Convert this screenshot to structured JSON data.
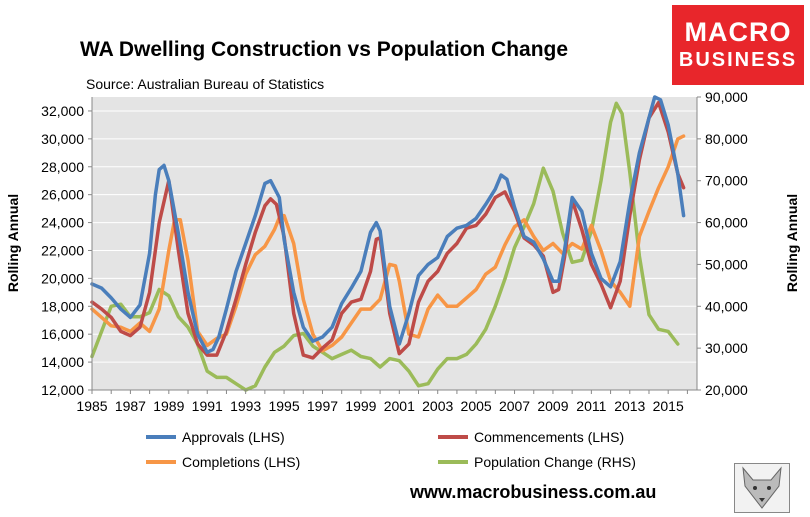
{
  "header": {
    "title": "WA Dwelling Construction vs Population Change",
    "source": "Source: Australian Bureau of Statistics"
  },
  "logo": {
    "line1": "MACRO",
    "line2": "BUSINESS",
    "background": "#e8262b"
  },
  "footer": {
    "url": "www.macrobusiness.com.au"
  },
  "colors": {
    "plot_bg": "#e4e4e4",
    "approvals": "#4a7ebb",
    "commencements": "#be4b48",
    "completions": "#f79646",
    "population": "#9bbb59"
  },
  "chart_data": {
    "type": "line",
    "title": "WA Dwelling Construction vs Population Change",
    "ylabel": "Rolling Annual",
    "y2label": "Rolling Annual",
    "xlim": [
      1985,
      2016.5
    ],
    "ylim": [
      12000,
      33000
    ],
    "y2lim": [
      20000,
      90000
    ],
    "xticks": [
      1985,
      1987,
      1989,
      1991,
      1993,
      1995,
      1997,
      1999,
      2001,
      2003,
      2005,
      2007,
      2009,
      2011,
      2013,
      2015
    ],
    "xtick_labels": [
      "1985",
      "1987",
      "1989",
      "1991",
      "1993",
      "1995",
      "1997",
      "1999",
      "2001",
      "2003",
      "2005",
      "2007",
      "2009",
      "2011",
      "2013",
      "2015"
    ],
    "yticks": [
      12000,
      14000,
      16000,
      18000,
      20000,
      22000,
      24000,
      26000,
      28000,
      30000,
      32000
    ],
    "ytick_labels": [
      "12,000",
      "14,000",
      "16,000",
      "18,000",
      "20,000",
      "22,000",
      "24,000",
      "26,000",
      "28,000",
      "30,000",
      "32,000"
    ],
    "y2ticks": [
      20000,
      30000,
      40000,
      50000,
      60000,
      70000,
      80000,
      90000
    ],
    "y2tick_labels": [
      "20,000",
      "30,000",
      "40,000",
      "50,000",
      "60,000",
      "70,000",
      "80,000",
      "90,000"
    ],
    "legend_position": "bottom",
    "series": [
      {
        "name": "Approvals (LHS)",
        "axis": "left",
        "color": "#4a7ebb",
        "points": [
          [
            1985,
            19600
          ],
          [
            1985.5,
            19300
          ],
          [
            1986,
            18600
          ],
          [
            1986.5,
            17800
          ],
          [
            1987,
            17200
          ],
          [
            1987.5,
            18100
          ],
          [
            1988,
            21800
          ],
          [
            1988.3,
            26000
          ],
          [
            1988.5,
            27800
          ],
          [
            1988.75,
            28100
          ],
          [
            1989,
            27000
          ],
          [
            1989.5,
            23200
          ],
          [
            1990,
            19000
          ],
          [
            1990.5,
            16000
          ],
          [
            1991,
            14700
          ],
          [
            1991.3,
            14900
          ],
          [
            1991.6,
            15800
          ],
          [
            1992,
            17800
          ],
          [
            1992.5,
            20500
          ],
          [
            1993,
            22500
          ],
          [
            1993.5,
            24500
          ],
          [
            1994,
            26800
          ],
          [
            1994.3,
            27000
          ],
          [
            1994.75,
            25800
          ],
          [
            1995,
            22800
          ],
          [
            1995.5,
            19000
          ],
          [
            1996,
            16500
          ],
          [
            1996.5,
            15500
          ],
          [
            1997,
            15800
          ],
          [
            1997.5,
            16500
          ],
          [
            1998,
            18200
          ],
          [
            1998.5,
            19300
          ],
          [
            1999,
            20500
          ],
          [
            1999.5,
            23300
          ],
          [
            1999.8,
            24000
          ],
          [
            2000,
            23400
          ],
          [
            2000.5,
            18000
          ],
          [
            2001,
            15300
          ],
          [
            2001.5,
            17500
          ],
          [
            2002,
            20200
          ],
          [
            2002.5,
            21000
          ],
          [
            2003,
            21500
          ],
          [
            2003.5,
            23000
          ],
          [
            2004,
            23600
          ],
          [
            2004.5,
            23800
          ],
          [
            2005,
            24300
          ],
          [
            2005.5,
            25300
          ],
          [
            2006,
            26400
          ],
          [
            2006.3,
            27400
          ],
          [
            2006.6,
            27100
          ],
          [
            2007,
            25100
          ],
          [
            2007.5,
            23000
          ],
          [
            2008,
            22600
          ],
          [
            2008.5,
            21400
          ],
          [
            2009,
            19800
          ],
          [
            2009.3,
            19800
          ],
          [
            2009.6,
            22000
          ],
          [
            2010,
            25800
          ],
          [
            2010.5,
            24800
          ],
          [
            2011,
            21800
          ],
          [
            2011.5,
            20000
          ],
          [
            2012,
            19400
          ],
          [
            2012.5,
            21200
          ],
          [
            2013,
            25500
          ],
          [
            2013.5,
            29000
          ],
          [
            2014,
            31500
          ],
          [
            2014.3,
            33000
          ],
          [
            2014.6,
            32800
          ],
          [
            2015,
            31000
          ],
          [
            2015.5,
            27500
          ],
          [
            2015.8,
            24500
          ]
        ]
      },
      {
        "name": "Commencements (LHS)",
        "axis": "left",
        "color": "#be4b48",
        "points": [
          [
            1985,
            18300
          ],
          [
            1985.5,
            17800
          ],
          [
            1986,
            17200
          ],
          [
            1986.5,
            16200
          ],
          [
            1987,
            15900
          ],
          [
            1987.5,
            16500
          ],
          [
            1988,
            19000
          ],
          [
            1988.5,
            24000
          ],
          [
            1989,
            27000
          ],
          [
            1989.5,
            22000
          ],
          [
            1990,
            17500
          ],
          [
            1990.5,
            15300
          ],
          [
            1991,
            14500
          ],
          [
            1991.5,
            14500
          ],
          [
            1992,
            16200
          ],
          [
            1992.5,
            18500
          ],
          [
            1993,
            21000
          ],
          [
            1993.5,
            23300
          ],
          [
            1994,
            25200
          ],
          [
            1994.3,
            25700
          ],
          [
            1994.6,
            25300
          ],
          [
            1995,
            23000
          ],
          [
            1995.5,
            17500
          ],
          [
            1996,
            14500
          ],
          [
            1996.5,
            14300
          ],
          [
            1997,
            15000
          ],
          [
            1997.5,
            15600
          ],
          [
            1998,
            17500
          ],
          [
            1998.5,
            18300
          ],
          [
            1999,
            18500
          ],
          [
            1999.5,
            20500
          ],
          [
            1999.8,
            22800
          ],
          [
            2000,
            22900
          ],
          [
            2000.5,
            17500
          ],
          [
            2001,
            14600
          ],
          [
            2001.5,
            15300
          ],
          [
            2002,
            18300
          ],
          [
            2002.5,
            19800
          ],
          [
            2003,
            20500
          ],
          [
            2003.5,
            21800
          ],
          [
            2004,
            22500
          ],
          [
            2004.5,
            23600
          ],
          [
            2005,
            23800
          ],
          [
            2005.5,
            24600
          ],
          [
            2006,
            25800
          ],
          [
            2006.5,
            26200
          ],
          [
            2007,
            24800
          ],
          [
            2007.5,
            22900
          ],
          [
            2008,
            22400
          ],
          [
            2008.5,
            21600
          ],
          [
            2009,
            19000
          ],
          [
            2009.3,
            19200
          ],
          [
            2009.6,
            21500
          ],
          [
            2010,
            25600
          ],
          [
            2010.5,
            23500
          ],
          [
            2011,
            21000
          ],
          [
            2011.5,
            19600
          ],
          [
            2012,
            17900
          ],
          [
            2012.5,
            19800
          ],
          [
            2013,
            24500
          ],
          [
            2013.5,
            28500
          ],
          [
            2014,
            31500
          ],
          [
            2014.5,
            32600
          ],
          [
            2015,
            30500
          ],
          [
            2015.5,
            27500
          ],
          [
            2015.8,
            26500
          ]
        ]
      },
      {
        "name": "Completions (LHS)",
        "axis": "left",
        "color": "#f79646",
        "points": [
          [
            1985,
            17800
          ],
          [
            1985.5,
            17200
          ],
          [
            1986,
            16600
          ],
          [
            1986.5,
            16500
          ],
          [
            1987,
            16200
          ],
          [
            1987.5,
            16800
          ],
          [
            1988,
            16200
          ],
          [
            1988.5,
            17800
          ],
          [
            1989,
            22000
          ],
          [
            1989.3,
            24200
          ],
          [
            1989.6,
            24200
          ],
          [
            1990,
            21300
          ],
          [
            1990.5,
            16200
          ],
          [
            1991,
            15200
          ],
          [
            1991.5,
            15700
          ],
          [
            1992,
            16000
          ],
          [
            1992.5,
            18000
          ],
          [
            1993,
            20300
          ],
          [
            1993.5,
            21700
          ],
          [
            1994,
            22300
          ],
          [
            1994.5,
            23500
          ],
          [
            1994.8,
            24500
          ],
          [
            1995,
            24500
          ],
          [
            1995.5,
            22500
          ],
          [
            1996,
            18500
          ],
          [
            1996.5,
            16000
          ],
          [
            1997,
            14800
          ],
          [
            1997.5,
            15200
          ],
          [
            1998,
            15800
          ],
          [
            1998.5,
            16800
          ],
          [
            1999,
            17800
          ],
          [
            1999.5,
            17800
          ],
          [
            2000,
            18500
          ],
          [
            2000.5,
            21000
          ],
          [
            2000.8,
            20900
          ],
          [
            2001,
            19800
          ],
          [
            2001.5,
            16000
          ],
          [
            2002,
            15800
          ],
          [
            2002.5,
            17800
          ],
          [
            2003,
            18800
          ],
          [
            2003.5,
            18000
          ],
          [
            2004,
            18000
          ],
          [
            2004.5,
            18600
          ],
          [
            2005,
            19200
          ],
          [
            2005.5,
            20300
          ],
          [
            2006,
            20800
          ],
          [
            2006.5,
            22400
          ],
          [
            2007,
            23700
          ],
          [
            2007.5,
            24200
          ],
          [
            2008,
            23000
          ],
          [
            2008.5,
            22000
          ],
          [
            2009,
            22500
          ],
          [
            2009.5,
            21800
          ],
          [
            2010,
            22500
          ],
          [
            2010.5,
            22100
          ],
          [
            2011,
            23800
          ],
          [
            2011.5,
            22000
          ],
          [
            2012,
            19800
          ],
          [
            2012.5,
            19000
          ],
          [
            2013,
            18000
          ],
          [
            2013.5,
            23000
          ],
          [
            2014,
            24800
          ],
          [
            2014.5,
            26500
          ],
          [
            2015,
            28000
          ],
          [
            2015.5,
            30000
          ],
          [
            2015.8,
            30200
          ]
        ]
      },
      {
        "name": "Population Change (RHS)",
        "axis": "right",
        "color": "#9bbb59",
        "points": [
          [
            1985,
            28000
          ],
          [
            1985.5,
            34000
          ],
          [
            1986,
            40000
          ],
          [
            1986.5,
            40500
          ],
          [
            1987,
            37500
          ],
          [
            1987.5,
            37500
          ],
          [
            1988,
            38500
          ],
          [
            1988.5,
            44000
          ],
          [
            1989,
            42500
          ],
          [
            1989.5,
            37500
          ],
          [
            1990,
            35000
          ],
          [
            1990.5,
            31000
          ],
          [
            1991,
            24500
          ],
          [
            1991.5,
            23000
          ],
          [
            1992,
            23000
          ],
          [
            1992.5,
            21500
          ],
          [
            1993,
            20000
          ],
          [
            1993.5,
            21000
          ],
          [
            1994,
            25500
          ],
          [
            1994.5,
            29000
          ],
          [
            1995,
            30500
          ],
          [
            1995.5,
            33000
          ],
          [
            1996,
            33500
          ],
          [
            1996.5,
            30500
          ],
          [
            1997,
            29000
          ],
          [
            1997.5,
            27500
          ],
          [
            1998,
            28500
          ],
          [
            1998.5,
            29500
          ],
          [
            1999,
            28000
          ],
          [
            1999.5,
            27500
          ],
          [
            2000,
            25500
          ],
          [
            2000.5,
            27500
          ],
          [
            2001,
            27000
          ],
          [
            2001.5,
            24500
          ],
          [
            2002,
            21000
          ],
          [
            2002.5,
            21500
          ],
          [
            2003,
            25000
          ],
          [
            2003.5,
            27500
          ],
          [
            2004,
            27500
          ],
          [
            2004.5,
            28500
          ],
          [
            2005,
            31000
          ],
          [
            2005.5,
            34500
          ],
          [
            2006,
            40000
          ],
          [
            2006.5,
            46500
          ],
          [
            2007,
            54000
          ],
          [
            2007.5,
            59000
          ],
          [
            2008,
            64500
          ],
          [
            2008.5,
            73000
          ],
          [
            2009,
            67500
          ],
          [
            2009.5,
            57500
          ],
          [
            2010,
            50500
          ],
          [
            2010.5,
            51000
          ],
          [
            2011,
            58000
          ],
          [
            2011.5,
            70000
          ],
          [
            2012,
            84000
          ],
          [
            2012.3,
            88500
          ],
          [
            2012.6,
            86000
          ],
          [
            2013,
            72000
          ],
          [
            2013.5,
            52000
          ],
          [
            2014,
            38000
          ],
          [
            2014.5,
            34500
          ],
          [
            2015,
            34000
          ],
          [
            2015.5,
            31000
          ]
        ]
      }
    ]
  }
}
